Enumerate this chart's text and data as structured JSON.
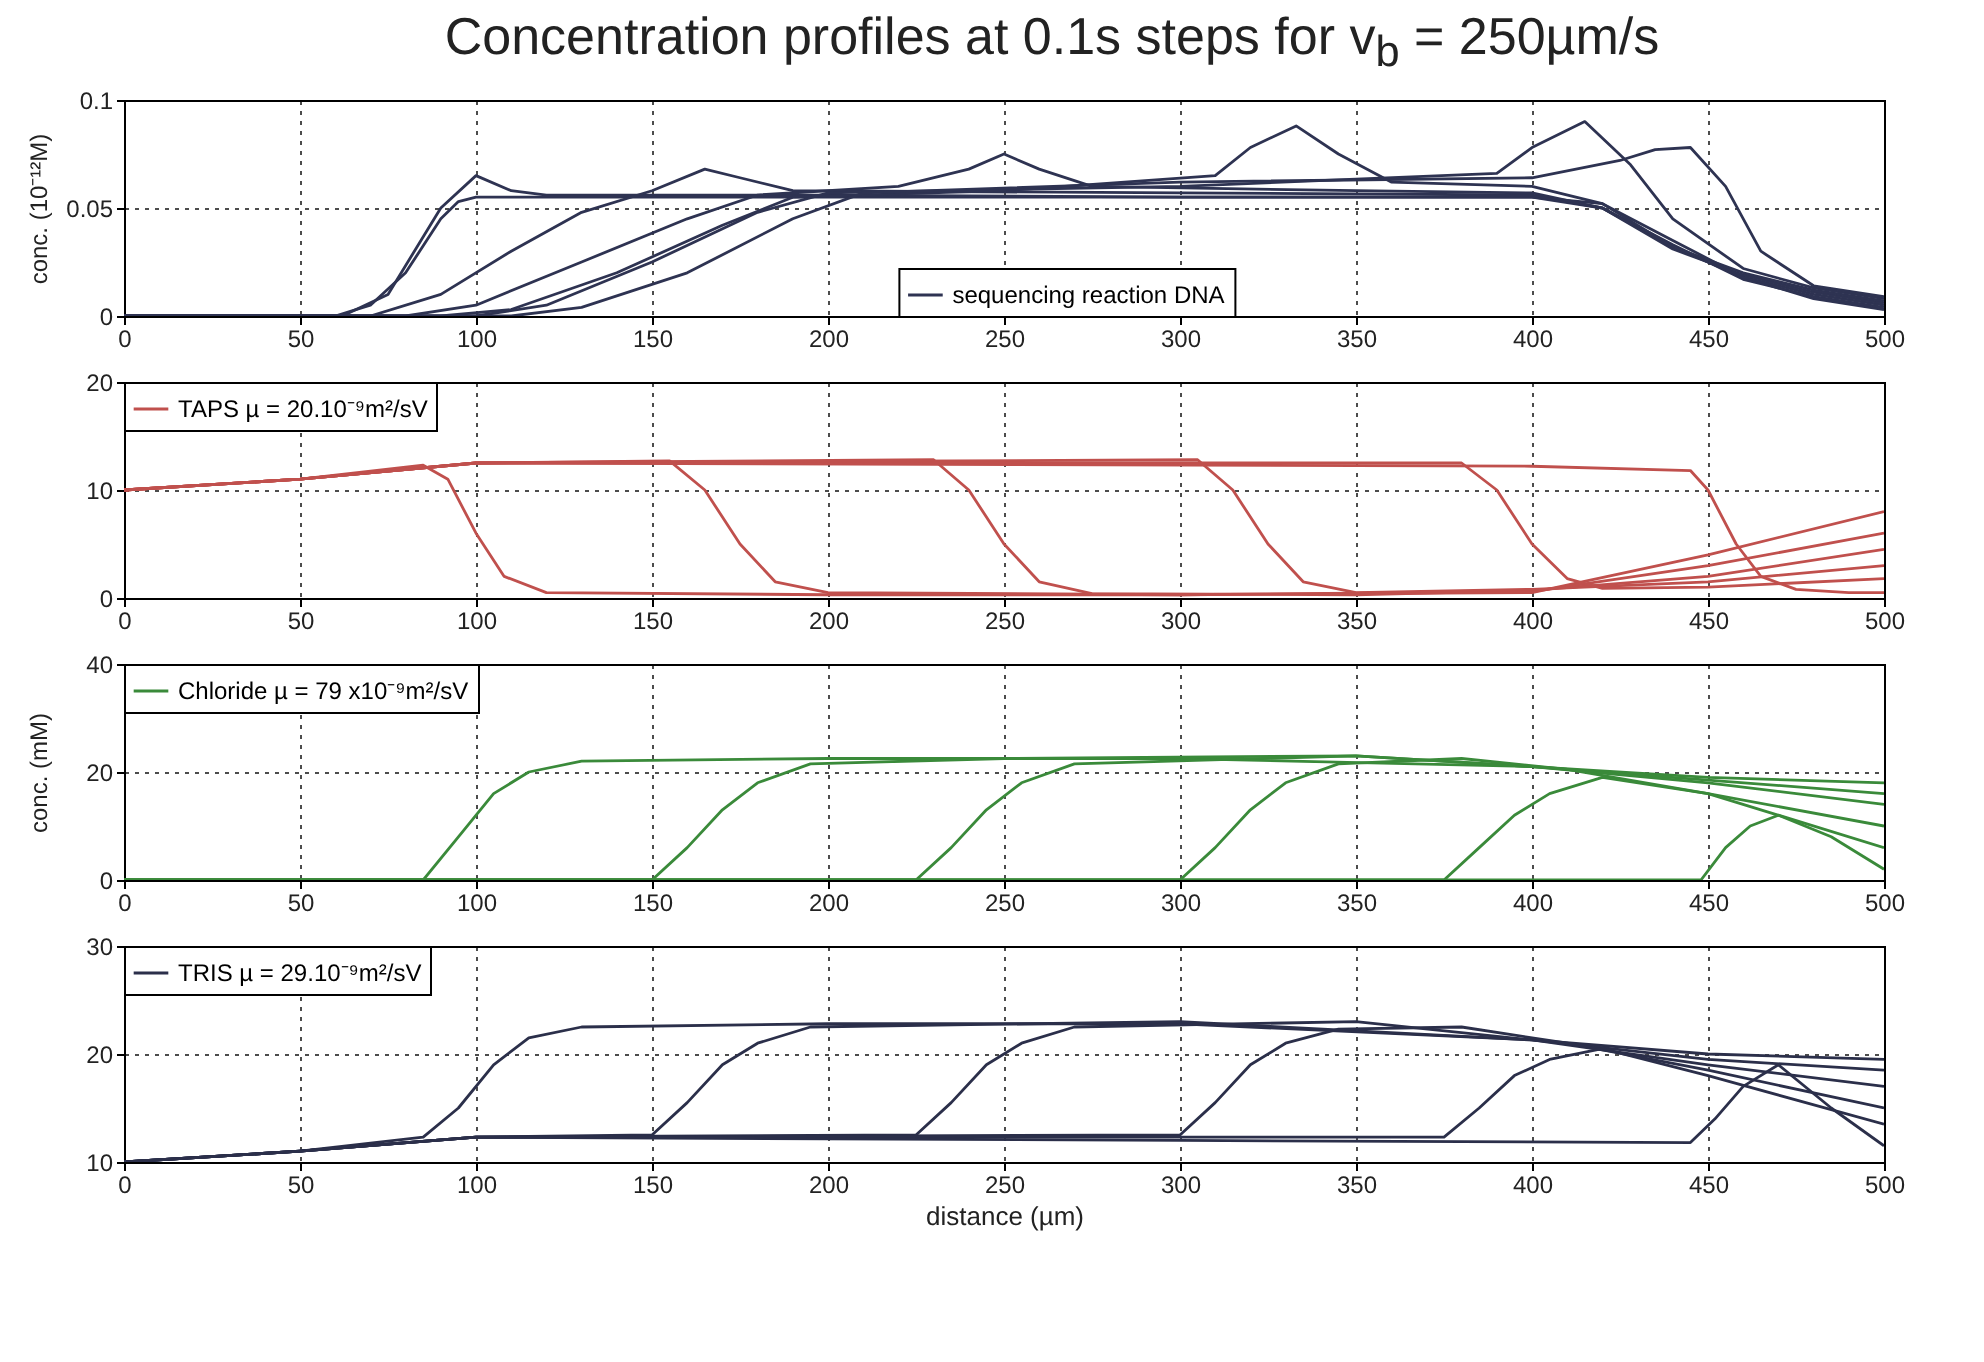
{
  "chart_data": [
    {
      "type": "line",
      "title": "Concentration profiles at 0.1s steps for v$_{b}$ = 250µm/s",
      "ylabel": "conc. (10⁻¹²M)",
      "xlim": [
        0,
        500
      ],
      "xticks": [
        0,
        50,
        100,
        150,
        200,
        250,
        300,
        350,
        400,
        450,
        500
      ],
      "ylim": [
        0,
        0.1
      ],
      "yticks": [
        0,
        0.05,
        0.1
      ],
      "grid": true,
      "legend": "bottom",
      "series": [
        {
          "name": "sequencing reaction DNA",
          "color": "#2e3352",
          "x": [
            0,
            60,
            70,
            80,
            90,
            95,
            100,
            200,
            300,
            400,
            420,
            440,
            460,
            480,
            500
          ],
          "values": [
            0,
            0,
            0.005,
            0.02,
            0.045,
            0.053,
            0.055,
            0.055,
            0.055,
            0.055,
            0.052,
            0.035,
            0.018,
            0.008,
            0.003
          ]
        },
        {
          "color": "#2e3352",
          "x": [
            0,
            62,
            75,
            90,
            100,
            110,
            120,
            200,
            300,
            400,
            420,
            440,
            460,
            480,
            500
          ],
          "values": [
            0,
            0,
            0.01,
            0.05,
            0.065,
            0.058,
            0.056,
            0.056,
            0.055,
            0.055,
            0.05,
            0.033,
            0.017,
            0.009,
            0.004
          ]
        },
        {
          "color": "#2e3352",
          "x": [
            0,
            70,
            90,
            110,
            130,
            150,
            165,
            175,
            190,
            300,
            400,
            420,
            440,
            460,
            480,
            500
          ],
          "values": [
            0,
            0,
            0.01,
            0.03,
            0.048,
            0.058,
            0.068,
            0.064,
            0.058,
            0.057,
            0.056,
            0.05,
            0.032,
            0.018,
            0.01,
            0.005
          ]
        },
        {
          "color": "#2e3352",
          "x": [
            0,
            80,
            100,
            130,
            160,
            180,
            220,
            240,
            250,
            260,
            275,
            350,
            400,
            420,
            440,
            460,
            480,
            500
          ],
          "values": [
            0,
            0,
            0.005,
            0.025,
            0.045,
            0.056,
            0.06,
            0.068,
            0.075,
            0.068,
            0.06,
            0.058,
            0.057,
            0.05,
            0.031,
            0.019,
            0.011,
            0.006
          ]
        },
        {
          "color": "#2e3352",
          "x": [
            0,
            90,
            110,
            140,
            170,
            190,
            250,
            310,
            320,
            333,
            345,
            360,
            400,
            420,
            440,
            460,
            480,
            500
          ],
          "values": [
            0,
            0,
            0.003,
            0.02,
            0.042,
            0.055,
            0.058,
            0.065,
            0.078,
            0.088,
            0.075,
            0.062,
            0.06,
            0.052,
            0.032,
            0.02,
            0.012,
            0.007
          ]
        },
        {
          "color": "#2e3352",
          "x": [
            0,
            100,
            120,
            150,
            180,
            200,
            300,
            390,
            400,
            415,
            428,
            440,
            460,
            480,
            500
          ],
          "values": [
            0,
            0,
            0.005,
            0.025,
            0.048,
            0.057,
            0.06,
            0.066,
            0.078,
            0.09,
            0.07,
            0.045,
            0.022,
            0.013,
            0.008
          ]
        },
        {
          "color": "#2e3352",
          "x": [
            0,
            110,
            130,
            160,
            190,
            210,
            300,
            400,
            425,
            435,
            445,
            455,
            465,
            480,
            500
          ],
          "values": [
            0,
            0,
            0.004,
            0.02,
            0.045,
            0.057,
            0.062,
            0.064,
            0.072,
            0.077,
            0.078,
            0.06,
            0.03,
            0.014,
            0.009
          ]
        }
      ]
    },
    {
      "type": "line",
      "xlim": [
        0,
        500
      ],
      "xticks": [
        0,
        50,
        100,
        150,
        200,
        250,
        300,
        350,
        400,
        450,
        500
      ],
      "ylim": [
        0,
        20
      ],
      "yticks": [
        0,
        10,
        20
      ],
      "grid": true,
      "legend": "top left",
      "series": [
        {
          "name": "TAPS µ = 20.10⁻⁹m²/sV",
          "color": "#c0504d",
          "x": [
            0,
            50,
            85,
            92,
            100,
            108,
            120,
            200,
            300,
            400,
            450,
            500
          ],
          "values": [
            10,
            11,
            12.3,
            11,
            6,
            2,
            0.5,
            0.3,
            0.3,
            0.5,
            4,
            8
          ]
        },
        {
          "color": "#c0504d",
          "x": [
            0,
            50,
            100,
            155,
            165,
            175,
            185,
            200,
            300,
            400,
            450,
            500
          ],
          "values": [
            10,
            11,
            12.5,
            12.7,
            10,
            5,
            1.5,
            0.5,
            0.3,
            0.6,
            3,
            6
          ]
        },
        {
          "color": "#c0504d",
          "x": [
            0,
            50,
            100,
            230,
            240,
            250,
            260,
            275,
            350,
            400,
            450,
            500
          ],
          "values": [
            10,
            11,
            12.5,
            12.8,
            10,
            5,
            1.5,
            0.4,
            0.3,
            0.7,
            2,
            4.5
          ]
        },
        {
          "color": "#c0504d",
          "x": [
            0,
            50,
            100,
            305,
            315,
            325,
            335,
            350,
            400,
            450,
            500
          ],
          "values": [
            10,
            11,
            12.5,
            12.8,
            10,
            5,
            1.5,
            0.5,
            0.8,
            1.5,
            3
          ]
        },
        {
          "color": "#c0504d",
          "x": [
            0,
            50,
            100,
            380,
            390,
            400,
            410,
            420,
            450,
            500
          ],
          "values": [
            10,
            11,
            12.5,
            12.5,
            10,
            5,
            1.8,
            0.9,
            1,
            1.8
          ]
        },
        {
          "color": "#c0504d",
          "x": [
            0,
            50,
            100,
            400,
            445,
            450,
            458,
            465,
            475,
            490,
            500
          ],
          "values": [
            10,
            11,
            12.5,
            12.2,
            11.8,
            10,
            5,
            2,
            0.8,
            0.5,
            0.5
          ]
        }
      ]
    },
    {
      "type": "line",
      "ylabel": "conc. (mM)",
      "xlim": [
        0,
        500
      ],
      "xticks": [
        0,
        50,
        100,
        150,
        200,
        250,
        300,
        350,
        400,
        450,
        500
      ],
      "ylim": [
        0,
        40
      ],
      "yticks": [
        0,
        20,
        40
      ],
      "grid": true,
      "legend": "top left",
      "series": [
        {
          "name": "Chloride µ = 79 x10⁻⁹m²/sV",
          "color": "#3a8a3a",
          "x": [
            0,
            85,
            95,
            105,
            115,
            130,
            200,
            300,
            400,
            450,
            500
          ],
          "values": [
            0,
            0,
            8,
            16,
            20,
            22,
            22.5,
            22.5,
            21,
            19,
            18
          ]
        },
        {
          "color": "#3a8a3a",
          "x": [
            0,
            150,
            160,
            170,
            180,
            195,
            250,
            350,
            400,
            450,
            500
          ],
          "values": [
            0,
            0,
            6,
            13,
            18,
            21.5,
            22.5,
            23,
            21,
            18.5,
            16
          ]
        },
        {
          "color": "#3a8a3a",
          "x": [
            0,
            225,
            235,
            245,
            255,
            270,
            350,
            400,
            450,
            500
          ],
          "values": [
            0,
            0,
            6,
            13,
            18,
            21.5,
            23,
            21,
            18,
            14
          ]
        },
        {
          "color": "#3a8a3a",
          "x": [
            0,
            300,
            310,
            320,
            330,
            345,
            380,
            410,
            450,
            500
          ],
          "values": [
            0,
            0,
            6,
            13,
            18,
            21.5,
            22.5,
            20.5,
            16,
            10
          ]
        },
        {
          "color": "#3a8a3a",
          "x": [
            0,
            375,
            385,
            395,
            405,
            420,
            450,
            500
          ],
          "values": [
            0,
            0,
            6,
            12,
            16,
            19,
            16,
            6
          ]
        },
        {
          "color": "#3a8a3a",
          "x": [
            0,
            448,
            455,
            462,
            470,
            485,
            500
          ],
          "values": [
            0,
            0,
            6,
            10,
            12,
            8,
            2
          ]
        }
      ]
    },
    {
      "type": "line",
      "xlabel": "distance (µm)",
      "xlim": [
        0,
        500
      ],
      "xticks": [
        0,
        50,
        100,
        150,
        200,
        250,
        300,
        350,
        400,
        450,
        500
      ],
      "ylim": [
        10,
        30
      ],
      "yticks": [
        10,
        20,
        30
      ],
      "grid": true,
      "legend": "top left",
      "series": [
        {
          "name": "TRIS µ = 29.10⁻⁹m²/sV",
          "color": "#2b2f4a",
          "x": [
            0,
            50,
            85,
            95,
            105,
            115,
            130,
            200,
            300,
            400,
            450,
            500
          ],
          "values": [
            10,
            11,
            12.3,
            15,
            19,
            21.5,
            22.5,
            22.8,
            22.8,
            21.3,
            20,
            19.5
          ]
        },
        {
          "color": "#2b2f4a",
          "x": [
            0,
            50,
            100,
            150,
            160,
            170,
            180,
            195,
            300,
            400,
            450,
            500
          ],
          "values": [
            10,
            11,
            12.3,
            12.5,
            15.5,
            19,
            21,
            22.5,
            23,
            21.3,
            19.5,
            18.5
          ]
        },
        {
          "color": "#2b2f4a",
          "x": [
            0,
            50,
            100,
            225,
            235,
            245,
            255,
            270,
            350,
            400,
            450,
            500
          ],
          "values": [
            10,
            11,
            12.3,
            12.5,
            15.5,
            19,
            21,
            22.5,
            23,
            21.3,
            19,
            17
          ]
        },
        {
          "color": "#2b2f4a",
          "x": [
            0,
            50,
            100,
            300,
            310,
            320,
            330,
            345,
            380,
            410,
            450,
            500
          ],
          "values": [
            10,
            11,
            12.3,
            12.5,
            15.5,
            19,
            21,
            22.3,
            22.5,
            21,
            18.5,
            15
          ]
        },
        {
          "color": "#2b2f4a",
          "x": [
            0,
            50,
            100,
            375,
            385,
            395,
            405,
            420,
            450,
            500
          ],
          "values": [
            10,
            11,
            12.3,
            12.3,
            15,
            18,
            19.5,
            20.5,
            18,
            13.5
          ]
        },
        {
          "color": "#2b2f4a",
          "x": [
            0,
            50,
            100,
            300,
            445,
            452,
            460,
            470,
            485,
            500
          ],
          "values": [
            10,
            11,
            12.3,
            12,
            11.8,
            14,
            17,
            19,
            15,
            11.5
          ]
        }
      ]
    }
  ]
}
